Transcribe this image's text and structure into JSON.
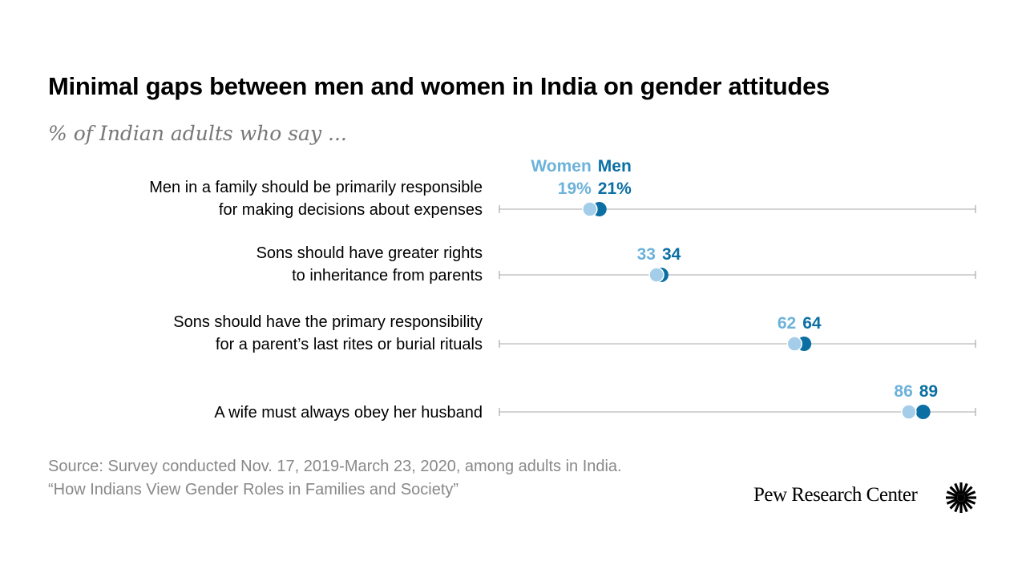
{
  "title": "Minimal gaps between men and women in India on gender attitudes",
  "subtitle": "% of Indian adults who say ...",
  "source_lines": [
    "Source: Survey conducted Nov. 17, 2019-March 23, 2020, among adults in India.",
    "“How Indians View Gender Roles in Families and Society”"
  ],
  "logo": "Pew Research Center",
  "chart_data": {
    "type": "dot",
    "xlim": [
      0,
      100
    ],
    "grid": false,
    "legend_placement": "top, above first row",
    "series": [
      {
        "name": "Women",
        "color": "#a3cde9",
        "label_color": "#6cb2da",
        "values": [
          19,
          33,
          62,
          86
        ]
      },
      {
        "name": "Men",
        "color": "#0b6fa4",
        "label_color": "#0b6fa4",
        "values": [
          21,
          34,
          64,
          89
        ]
      }
    ],
    "categories": [
      [
        "Men in a family should be primarily responsible",
        "for making decisions about expenses"
      ],
      [
        "Sons should have greater rights",
        "to inheritance from parents"
      ],
      [
        "Sons should have the primary responsibility",
        "for a parent’s last rites or burial rituals"
      ],
      [
        "A wife must always obey her husband"
      ]
    ],
    "value_suffix_first_row": "%"
  }
}
